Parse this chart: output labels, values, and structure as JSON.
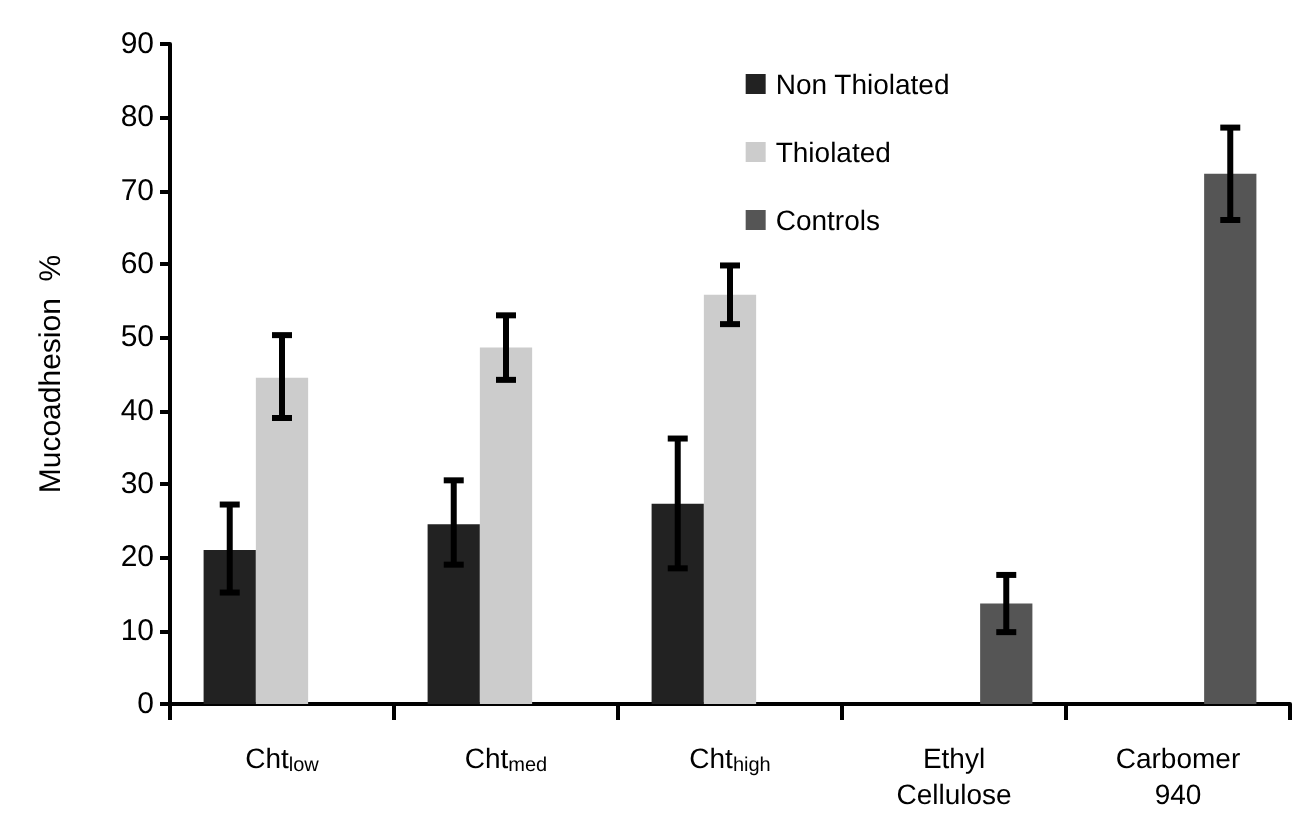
{
  "chart_data": {
    "type": "bar",
    "ylabel": "Mucoadhesion  %",
    "categories": [
      "Cht$_{low}$",
      "Cht$_{med}$",
      "Cht$_{high}$",
      "Ethyl Cellulose",
      "Carbomer 940"
    ],
    "series": [
      {
        "name": "Non Thiolated",
        "color": "#222222",
        "values": [
          21,
          24.5,
          27.3,
          null,
          null
        ],
        "errors": [
          [
            15.2,
            27.2
          ],
          [
            19,
            30.5
          ],
          [
            18.5,
            36.2
          ],
          null,
          null
        ]
      },
      {
        "name": "Thiolated",
        "color": "#cccccc",
        "values": [
          44.5,
          48.6,
          55.8,
          null,
          null
        ],
        "errors": [
          [
            39,
            50.3
          ],
          [
            44.2,
            53
          ],
          [
            51.8,
            59.8
          ],
          null,
          null
        ]
      },
      {
        "name": "Controls",
        "color": "#555555",
        "values": [
          null,
          null,
          null,
          13.7,
          72.3
        ],
        "errors": [
          null,
          null,
          null,
          [
            9.8,
            17.6
          ],
          [
            66,
            78.6
          ]
        ]
      }
    ],
    "ylim": [
      0,
      90
    ],
    "yticks": [
      0,
      10,
      20,
      30,
      40,
      50,
      60,
      70,
      80,
      90
    ],
    "grid": false,
    "legend": "top right"
  }
}
